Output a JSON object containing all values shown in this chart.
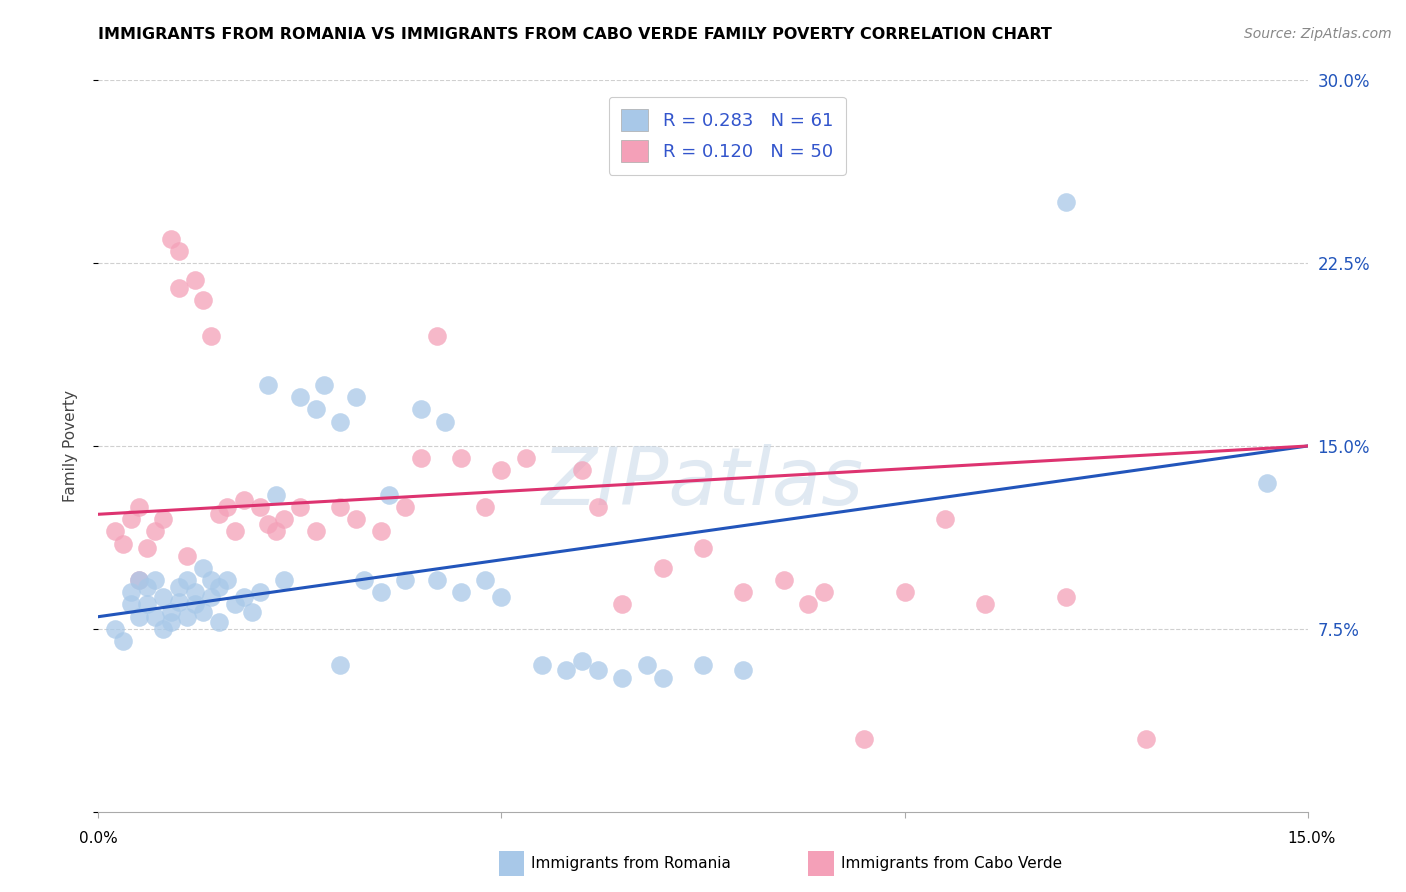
{
  "title": "IMMIGRANTS FROM ROMANIA VS IMMIGRANTS FROM CABO VERDE FAMILY POVERTY CORRELATION CHART",
  "source": "Source: ZipAtlas.com",
  "ylabel": "Family Poverty",
  "y_ticks": [
    0.0,
    0.075,
    0.15,
    0.225,
    0.3
  ],
  "y_tick_labels": [
    "",
    "7.5%",
    "15.0%",
    "22.5%",
    "30.0%"
  ],
  "xlim": [
    0.0,
    0.15
  ],
  "ylim": [
    0.0,
    0.3
  ],
  "romania_R": 0.283,
  "romania_N": 61,
  "caboverde_R": 0.12,
  "caboverde_N": 50,
  "romania_color": "#a8c8e8",
  "caboverde_color": "#f4a0b8",
  "romania_line_color": "#2255bb",
  "caboverde_line_color": "#dd3370",
  "legend_text_color": "#3355cc",
  "romania_scatter_x": [
    0.002,
    0.003,
    0.004,
    0.004,
    0.005,
    0.005,
    0.006,
    0.006,
    0.007,
    0.007,
    0.008,
    0.008,
    0.009,
    0.009,
    0.01,
    0.01,
    0.011,
    0.011,
    0.012,
    0.012,
    0.013,
    0.013,
    0.014,
    0.014,
    0.015,
    0.015,
    0.016,
    0.017,
    0.018,
    0.019,
    0.02,
    0.021,
    0.022,
    0.023,
    0.025,
    0.027,
    0.028,
    0.03,
    0.032,
    0.033,
    0.035,
    0.036,
    0.038,
    0.04,
    0.042,
    0.043,
    0.045,
    0.048,
    0.05,
    0.03,
    0.055,
    0.058,
    0.06,
    0.062,
    0.065,
    0.068,
    0.07,
    0.075,
    0.08,
    0.12,
    0.145
  ],
  "romania_scatter_y": [
    0.075,
    0.07,
    0.085,
    0.09,
    0.08,
    0.095,
    0.085,
    0.092,
    0.08,
    0.095,
    0.075,
    0.088,
    0.082,
    0.078,
    0.092,
    0.086,
    0.095,
    0.08,
    0.09,
    0.085,
    0.1,
    0.082,
    0.095,
    0.088,
    0.092,
    0.078,
    0.095,
    0.085,
    0.088,
    0.082,
    0.09,
    0.175,
    0.13,
    0.095,
    0.17,
    0.165,
    0.175,
    0.16,
    0.17,
    0.095,
    0.09,
    0.13,
    0.095,
    0.165,
    0.095,
    0.16,
    0.09,
    0.095,
    0.088,
    0.06,
    0.06,
    0.058,
    0.062,
    0.058,
    0.055,
    0.06,
    0.055,
    0.06,
    0.058,
    0.25,
    0.135
  ],
  "caboverde_scatter_x": [
    0.002,
    0.003,
    0.004,
    0.005,
    0.005,
    0.006,
    0.007,
    0.008,
    0.009,
    0.01,
    0.01,
    0.011,
    0.012,
    0.013,
    0.014,
    0.015,
    0.016,
    0.017,
    0.018,
    0.02,
    0.021,
    0.022,
    0.023,
    0.025,
    0.027,
    0.03,
    0.032,
    0.035,
    0.038,
    0.04,
    0.042,
    0.045,
    0.048,
    0.05,
    0.053,
    0.06,
    0.062,
    0.065,
    0.07,
    0.075,
    0.08,
    0.085,
    0.088,
    0.09,
    0.095,
    0.1,
    0.105,
    0.11,
    0.12,
    0.13
  ],
  "caboverde_scatter_y": [
    0.115,
    0.11,
    0.12,
    0.095,
    0.125,
    0.108,
    0.115,
    0.12,
    0.235,
    0.23,
    0.215,
    0.105,
    0.218,
    0.21,
    0.195,
    0.122,
    0.125,
    0.115,
    0.128,
    0.125,
    0.118,
    0.115,
    0.12,
    0.125,
    0.115,
    0.125,
    0.12,
    0.115,
    0.125,
    0.145,
    0.195,
    0.145,
    0.125,
    0.14,
    0.145,
    0.14,
    0.125,
    0.085,
    0.1,
    0.108,
    0.09,
    0.095,
    0.085,
    0.09,
    0.03,
    0.09,
    0.12,
    0.085,
    0.088,
    0.03
  ],
  "watermark": "ZIPatlas",
  "background_color": "#ffffff",
  "grid_color": "#d0d0d0"
}
